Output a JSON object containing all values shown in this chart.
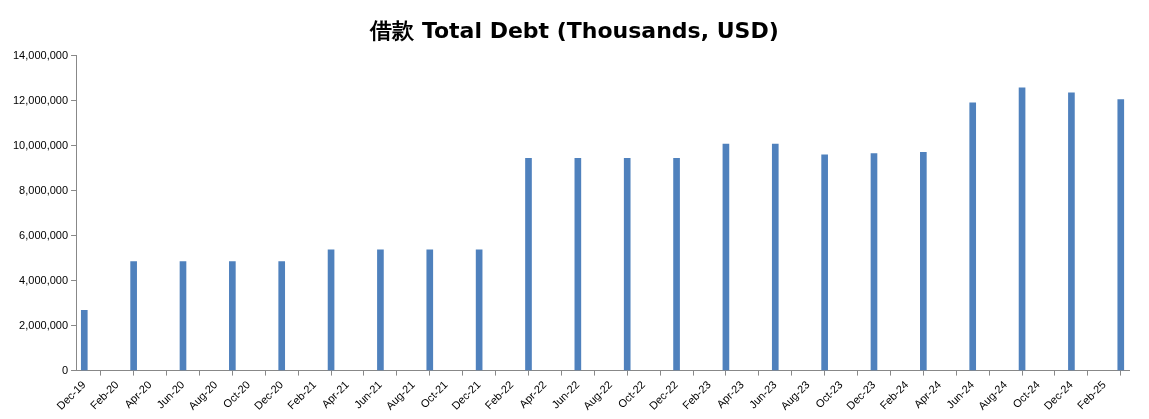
{
  "chart_data": {
    "type": "bar",
    "title": "借款 Total Debt (Thousands, USD)",
    "x": [
      "2019-12",
      "2020-03",
      "2020-06",
      "2020-09",
      "2020-12",
      "2021-03",
      "2021-06",
      "2021-09",
      "2021-12",
      "2022-03",
      "2022-06",
      "2022-09",
      "2022-12",
      "2023-03",
      "2023-06",
      "2023-09",
      "2023-12",
      "2024-03",
      "2024-06",
      "2024-09",
      "2024-12",
      "2025-03"
    ],
    "values": [
      2680000,
      4840000,
      4840000,
      4840000,
      4840000,
      5370000,
      5370000,
      5370000,
      5370000,
      9430000,
      9430000,
      9430000,
      9430000,
      10070000,
      10070000,
      9590000,
      9650000,
      9700000,
      11900000,
      12570000,
      12340000,
      12040000
    ],
    "color": "#4f81bd",
    "xlim": [
      "2019-11-16",
      "2025-03-16"
    ],
    "xticks": [
      {
        "value": "2019-12",
        "label": "Dec-19"
      },
      {
        "value": "2020-02",
        "label": "Feb-20"
      },
      {
        "value": "2020-04",
        "label": "Apr-20"
      },
      {
        "value": "2020-06",
        "label": "Jun-20"
      },
      {
        "value": "2020-08",
        "label": "Aug-20"
      },
      {
        "value": "2020-10",
        "label": "Oct-20"
      },
      {
        "value": "2020-12",
        "label": "Dec-20"
      },
      {
        "value": "2021-02",
        "label": "Feb-21"
      },
      {
        "value": "2021-04",
        "label": "Apr-21"
      },
      {
        "value": "2021-06",
        "label": "Jun-21"
      },
      {
        "value": "2021-08",
        "label": "Aug-21"
      },
      {
        "value": "2021-10",
        "label": "Oct-21"
      },
      {
        "value": "2021-12",
        "label": "Dec-21"
      },
      {
        "value": "2022-02",
        "label": "Feb-22"
      },
      {
        "value": "2022-04",
        "label": "Apr-22"
      },
      {
        "value": "2022-06",
        "label": "Jun-22"
      },
      {
        "value": "2022-08",
        "label": "Aug-22"
      },
      {
        "value": "2022-10",
        "label": "Oct-22"
      },
      {
        "value": "2022-12",
        "label": "Dec-22"
      },
      {
        "value": "2023-02",
        "label": "Feb-23"
      },
      {
        "value": "2023-04",
        "label": "Apr-23"
      },
      {
        "value": "2023-06",
        "label": "Jun-23"
      },
      {
        "value": "2023-08",
        "label": "Aug-23"
      },
      {
        "value": "2023-10",
        "label": "Oct-23"
      },
      {
        "value": "2023-12",
        "label": "Dec-23"
      },
      {
        "value": "2024-02",
        "label": "Feb-24"
      },
      {
        "value": "2024-04",
        "label": "Apr-24"
      },
      {
        "value": "2024-06",
        "label": "Jun-24"
      },
      {
        "value": "2024-08",
        "label": "Aug-24"
      },
      {
        "value": "2024-10",
        "label": "Oct-24"
      },
      {
        "value": "2024-12",
        "label": "Dec-24"
      },
      {
        "value": "2025-02",
        "label": "Feb-25"
      }
    ],
    "ylim": [
      0,
      14000000
    ],
    "yticks": [
      {
        "value": 0,
        "label": "0"
      },
      {
        "value": 2000000,
        "label": "2,000,000"
      },
      {
        "value": 4000000,
        "label": "4,000,000"
      },
      {
        "value": 6000000,
        "label": "6,000,000"
      },
      {
        "value": 8000000,
        "label": "8,000,000"
      },
      {
        "value": 10000000,
        "label": "10,000,000"
      },
      {
        "value": 12000000,
        "label": "12,000,000"
      },
      {
        "value": 14000000,
        "label": "14,000,000"
      }
    ],
    "grid": false,
    "legend": false
  }
}
